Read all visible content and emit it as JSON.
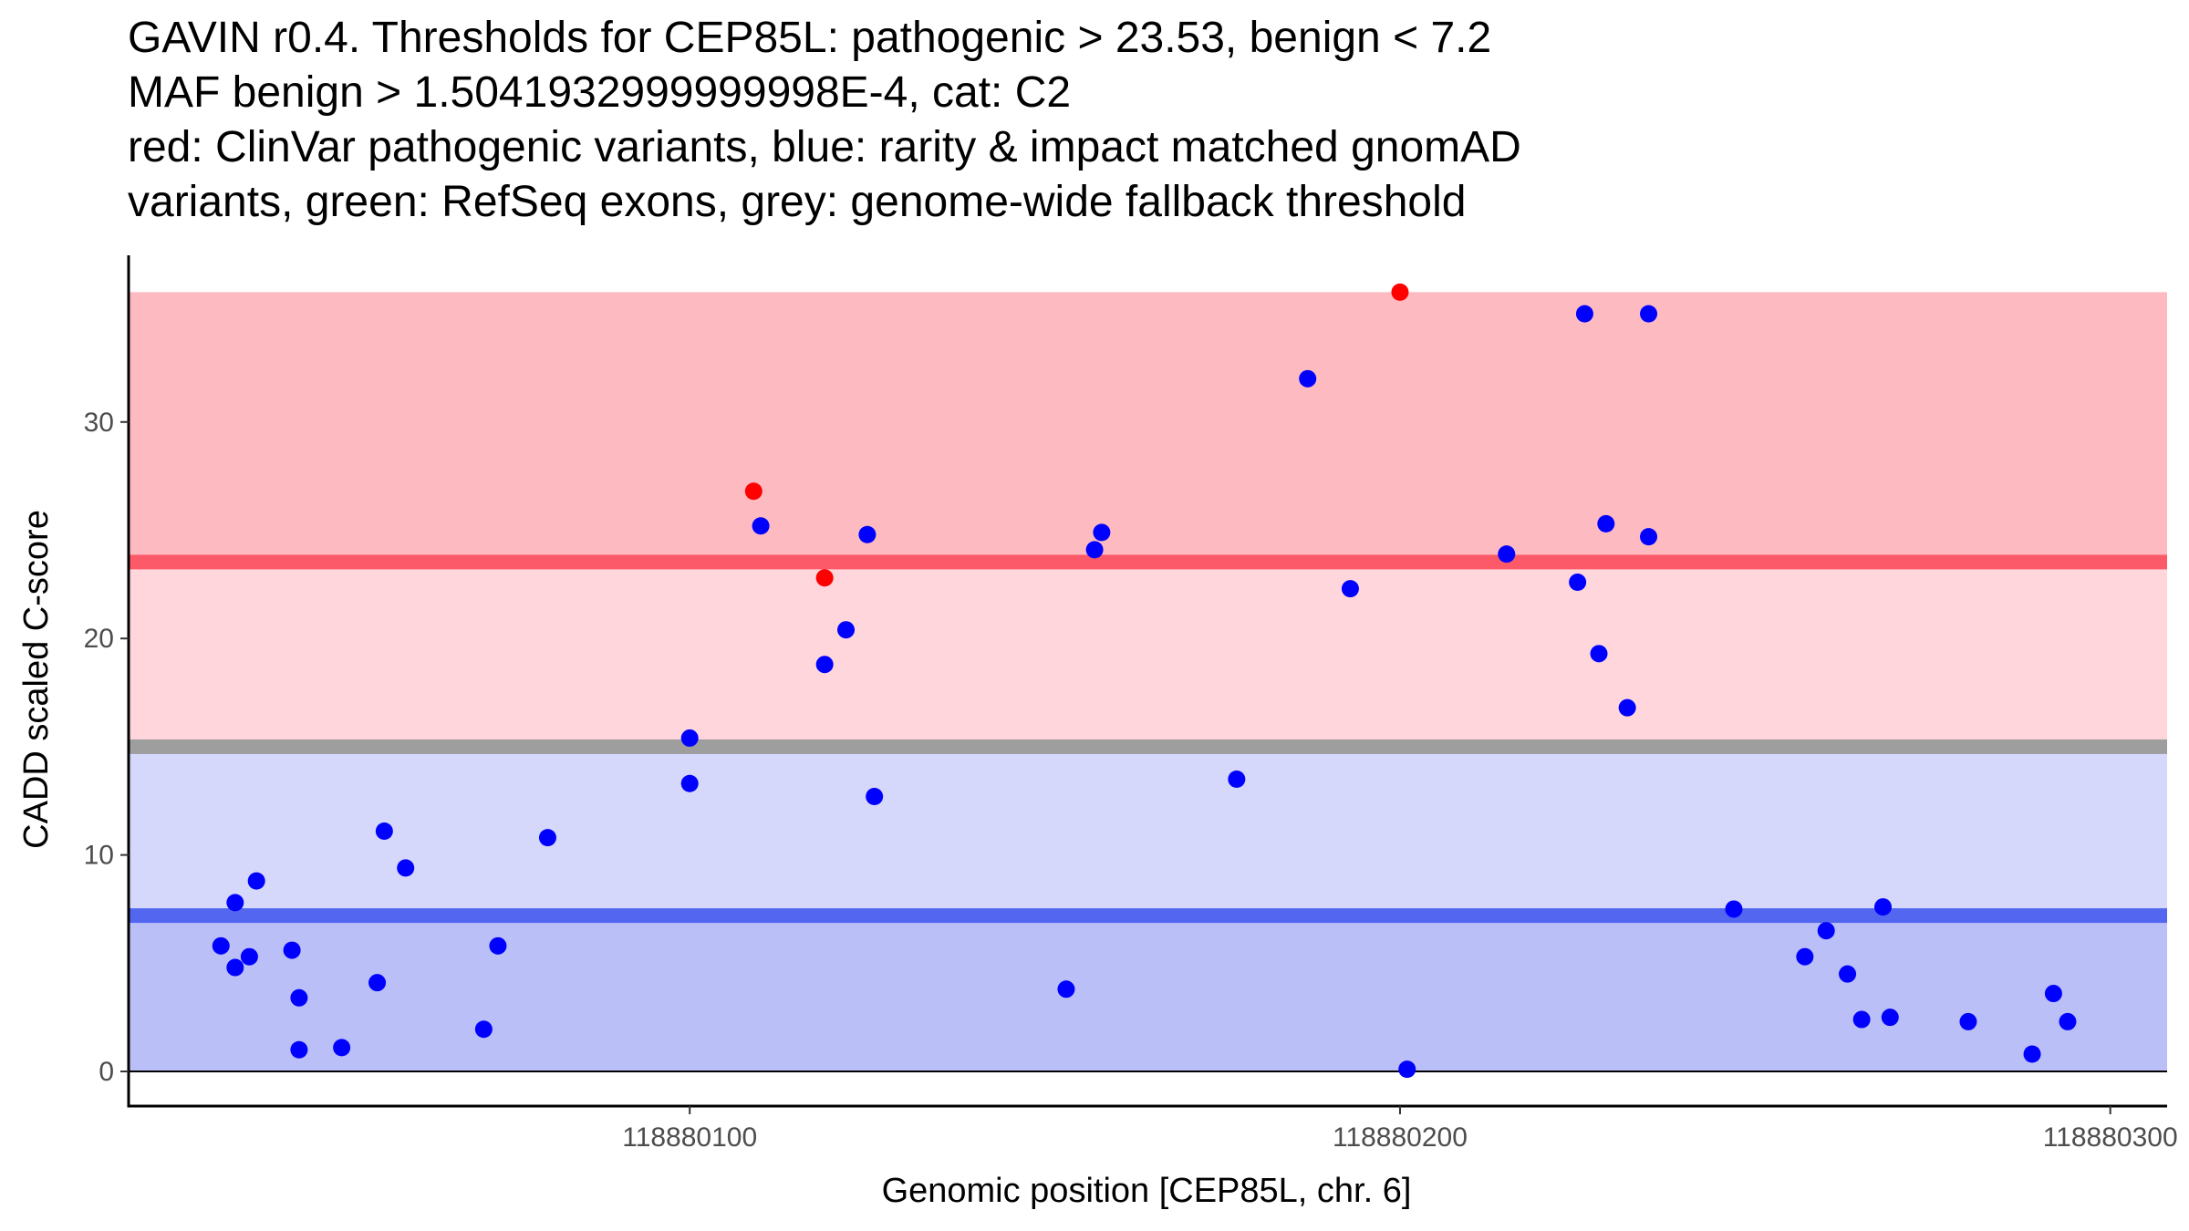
{
  "chart_data": {
    "type": "scatter",
    "title_lines": [
      "GAVIN r0.4. Thresholds for CEP85L: pathogenic > 23.53, benign < 7.2",
      "MAF benign > 1.5041932999999998E-4, cat: C2",
      "red: ClinVar pathogenic variants, blue: rarity & impact matched gnomAD",
      "variants, green: RefSeq exons, grey: genome-wide fallback threshold"
    ],
    "xlabel": "Genomic position [CEP85L, chr. 6]",
    "ylabel": "CADD scaled C-score",
    "xlim": [
      118880021,
      118880308
    ],
    "ylim": [
      -1.6,
      37.7
    ],
    "x_ticks": [
      118880100,
      118880200,
      118880300
    ],
    "x_tick_labels": [
      "118880100",
      "118880200",
      "118880300"
    ],
    "y_ticks": [
      0,
      10,
      20,
      30
    ],
    "y_tick_labels": [
      "0",
      "10",
      "20",
      "30"
    ],
    "grid": false,
    "legend": "none",
    "bands": [
      {
        "name": "pathogenic-zone",
        "ymin": 23.53,
        "ymax": 36,
        "color": "#fdbbc1"
      },
      {
        "name": "pathogenic-to-fallback-zone",
        "ymin": 15,
        "ymax": 23.53,
        "color": "#fed6dc"
      },
      {
        "name": "fallback-to-benign-zone",
        "ymin": 7.2,
        "ymax": 15,
        "color": "#d6d8fb"
      },
      {
        "name": "benign-zone",
        "ymin": 0,
        "ymax": 7.2,
        "color": "#babff8"
      }
    ],
    "threshold_lines": [
      {
        "name": "pathogenic-threshold",
        "y": 23.53,
        "color": "#fd5a69"
      },
      {
        "name": "fallback-threshold",
        "y": 15,
        "color": "#9e9e9e"
      },
      {
        "name": "benign-threshold",
        "y": 7.2,
        "color": "#5266ef"
      }
    ],
    "series": [
      {
        "name": "ClinVar pathogenic variants",
        "color": "#ff0000",
        "points": [
          {
            "x": 118880109,
            "y": 26.8
          },
          {
            "x": 118880119,
            "y": 22.8
          },
          {
            "x": 118880200,
            "y": 36.0
          }
        ]
      },
      {
        "name": "rarity & impact matched gnomAD variants",
        "color": "#0000ff",
        "points": [
          {
            "x": 118880034,
            "y": 5.8
          },
          {
            "x": 118880036,
            "y": 4.8
          },
          {
            "x": 118880036,
            "y": 7.8
          },
          {
            "x": 118880038,
            "y": 5.3
          },
          {
            "x": 118880039,
            "y": 8.8
          },
          {
            "x": 118880044,
            "y": 5.6
          },
          {
            "x": 118880045,
            "y": 3.4
          },
          {
            "x": 118880045,
            "y": 1.0
          },
          {
            "x": 118880051,
            "y": 1.1
          },
          {
            "x": 118880056,
            "y": 4.1
          },
          {
            "x": 118880057,
            "y": 11.1
          },
          {
            "x": 118880060,
            "y": 9.4
          },
          {
            "x": 118880071,
            "y": 1.95
          },
          {
            "x": 118880073,
            "y": 5.8
          },
          {
            "x": 118880080,
            "y": 10.8
          },
          {
            "x": 118880100,
            "y": 15.4
          },
          {
            "x": 118880100,
            "y": 13.3
          },
          {
            "x": 118880110,
            "y": 25.2
          },
          {
            "x": 118880119,
            "y": 18.8
          },
          {
            "x": 118880122,
            "y": 20.4
          },
          {
            "x": 118880125,
            "y": 24.8
          },
          {
            "x": 118880126,
            "y": 12.7
          },
          {
            "x": 118880153,
            "y": 3.8
          },
          {
            "x": 118880157,
            "y": 24.1
          },
          {
            "x": 118880158,
            "y": 24.9
          },
          {
            "x": 118880177,
            "y": 13.5
          },
          {
            "x": 118880187,
            "y": 32.0
          },
          {
            "x": 118880193,
            "y": 22.3
          },
          {
            "x": 118880201,
            "y": 0.1
          },
          {
            "x": 118880215,
            "y": 23.9
          },
          {
            "x": 118880225,
            "y": 22.6
          },
          {
            "x": 118880226,
            "y": 35.0
          },
          {
            "x": 118880228,
            "y": 19.3
          },
          {
            "x": 118880229,
            "y": 25.3
          },
          {
            "x": 118880232,
            "y": 16.8
          },
          {
            "x": 118880235,
            "y": 35.0
          },
          {
            "x": 118880235,
            "y": 24.7
          },
          {
            "x": 118880247,
            "y": 7.5
          },
          {
            "x": 118880257,
            "y": 5.3
          },
          {
            "x": 118880260,
            "y": 6.5
          },
          {
            "x": 118880263,
            "y": 4.5
          },
          {
            "x": 118880265,
            "y": 2.4
          },
          {
            "x": 118880268,
            "y": 7.6
          },
          {
            "x": 118880269,
            "y": 2.5
          },
          {
            "x": 118880280,
            "y": 2.3
          },
          {
            "x": 118880289,
            "y": 0.8
          },
          {
            "x": 118880292,
            "y": 3.6
          },
          {
            "x": 118880294,
            "y": 2.3
          }
        ]
      }
    ]
  }
}
